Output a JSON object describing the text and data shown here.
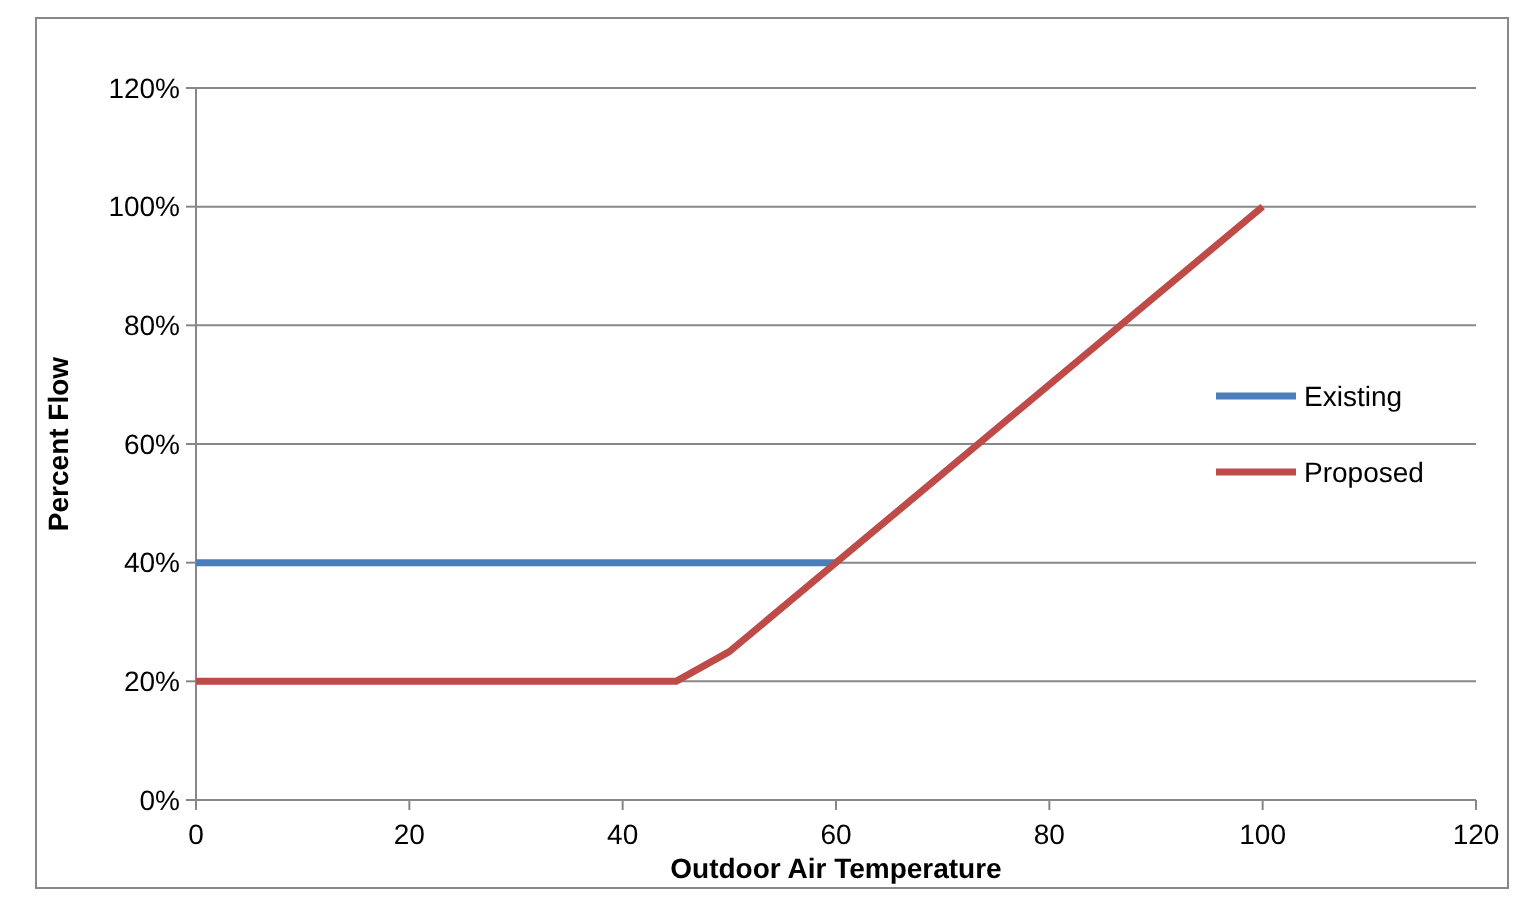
{
  "chart_data": {
    "type": "line",
    "xlabel": "Outdoor Air Temperature",
    "ylabel": "Percent Flow",
    "xlim": [
      0,
      120
    ],
    "xticks": [
      0,
      20,
      40,
      60,
      80,
      100,
      120
    ],
    "ylim": [
      0,
      120
    ],
    "yticks": [
      {
        "value": 0,
        "label": "0%"
      },
      {
        "value": 20,
        "label": "20%"
      },
      {
        "value": 40,
        "label": "40%"
      },
      {
        "value": 60,
        "label": "60%"
      },
      {
        "value": 80,
        "label": "80%"
      },
      {
        "value": 100,
        "label": "100%"
      },
      {
        "value": 120,
        "label": "120%"
      }
    ],
    "grid": "y",
    "legend": "right",
    "line_style": "solid",
    "marker": "none",
    "series": [
      {
        "name": "Existing",
        "color": "#4a7ebb",
        "x": [
          0,
          60
        ],
        "values": [
          40,
          40
        ]
      },
      {
        "name": "Proposed",
        "color": "#be4b48",
        "x": [
          0,
          45,
          50,
          60,
          100
        ],
        "values": [
          20,
          20,
          25,
          40,
          100
        ]
      }
    ]
  }
}
